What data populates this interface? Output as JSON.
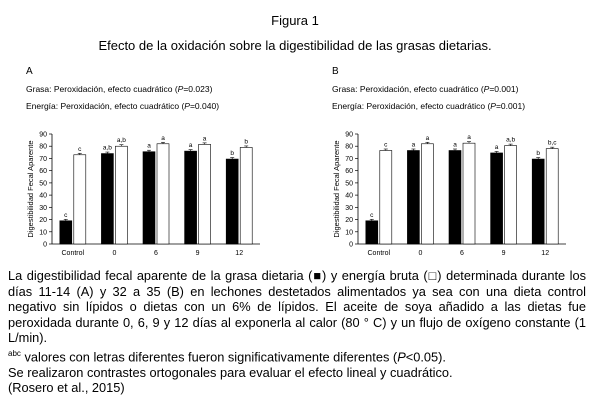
{
  "figure": {
    "title": "Figura 1",
    "subtitle": "Efecto de la oxidación sobre la digestibilidad de las grasas dietarias."
  },
  "panels": [
    {
      "letter": "A",
      "stat1": {
        "pre": "Grasa: Peroxidación,  efecto cuadrático (",
        "p": "P",
        "post": "=0.023)"
      },
      "stat2": {
        "pre": "Energía: Peroxidación,  efecto cuadrático (",
        "p": "P",
        "post": "=0.040)"
      }
    },
    {
      "letter": "B",
      "stat1": {
        "pre": "Grasa: Peroxidación,  efecto cuadrático (",
        "p": "P",
        "post": "=0.001)"
      },
      "stat2": {
        "pre": "Energía: Peroxidación,  efecto cuadrático (",
        "p": "P",
        "post": "=0.001)"
      }
    }
  ],
  "chart_data": [
    {
      "type": "bar",
      "panel": "A",
      "title": "",
      "xlabel": "",
      "ylabel": "Digestibilidad Fecal Aparente",
      "ylim": [
        0,
        90
      ],
      "yticks": [
        0,
        10,
        20,
        30,
        40,
        50,
        60,
        70,
        80,
        90
      ],
      "categories": [
        "Control",
        "0",
        "6",
        "9",
        "12"
      ],
      "series": [
        {
          "fill": "#000000",
          "values": [
            19,
            74,
            75.5,
            76,
            69.5
          ],
          "labels": [
            "c",
            "a,b",
            "a",
            "a",
            "b"
          ]
        },
        {
          "fill": "#ffffff",
          "values": [
            73,
            80,
            82,
            81.5,
            79
          ],
          "labels": [
            "c",
            "a,b",
            "a",
            "a",
            "b"
          ]
        }
      ]
    },
    {
      "type": "bar",
      "panel": "B",
      "title": "",
      "xlabel": "",
      "ylabel": "Digestibilidad Fecal Aparente",
      "ylim": [
        0,
        90
      ],
      "yticks": [
        0,
        10,
        20,
        30,
        40,
        50,
        60,
        70,
        80,
        90
      ],
      "categories": [
        "Control",
        "0",
        "6",
        "9",
        "12"
      ],
      "series": [
        {
          "fill": "#000000",
          "values": [
            19,
            76.5,
            76.5,
            74.5,
            69.5
          ],
          "labels": [
            "c",
            "a",
            "a",
            "a",
            "b"
          ]
        },
        {
          "fill": "#ffffff",
          "values": [
            76.5,
            82,
            82.5,
            80.5,
            78
          ],
          "labels": [
            "c",
            "a",
            "a",
            "a,b",
            "b,c"
          ]
        }
      ]
    }
  ],
  "caption": {
    "p1_pre": "La digestibilidad fecal aparente de la grasa dietaria (",
    "sym_filled": "■",
    "p1_mid": ") y energía bruta (",
    "sym_empty": "□",
    "p1_post": ") determinada durante los días 11-14 (A) y 32 a 35 (B) en lechones destetados alimentados ya sea con una dieta control negativo sin lípidos o dietas con un 6% de lípidos. El aceite de soya añadido a las dietas fue peroxidada durante 0, 6, 9 y 12 días al exponerla al calor (80 ° C) y un flujo de oxígeno constante (1 L/min).",
    "p2_sup": "abc",
    "p2_pre": " valores con letras diferentes fueron significativamente diferentes (",
    "p2_p": "P",
    "p2_post": "<0.05).",
    "p3": "Se realizaron contrastes ortogonales para evaluar el efecto lineal y cuadrático.",
    "p4": "(Rosero et al., 2015)"
  }
}
